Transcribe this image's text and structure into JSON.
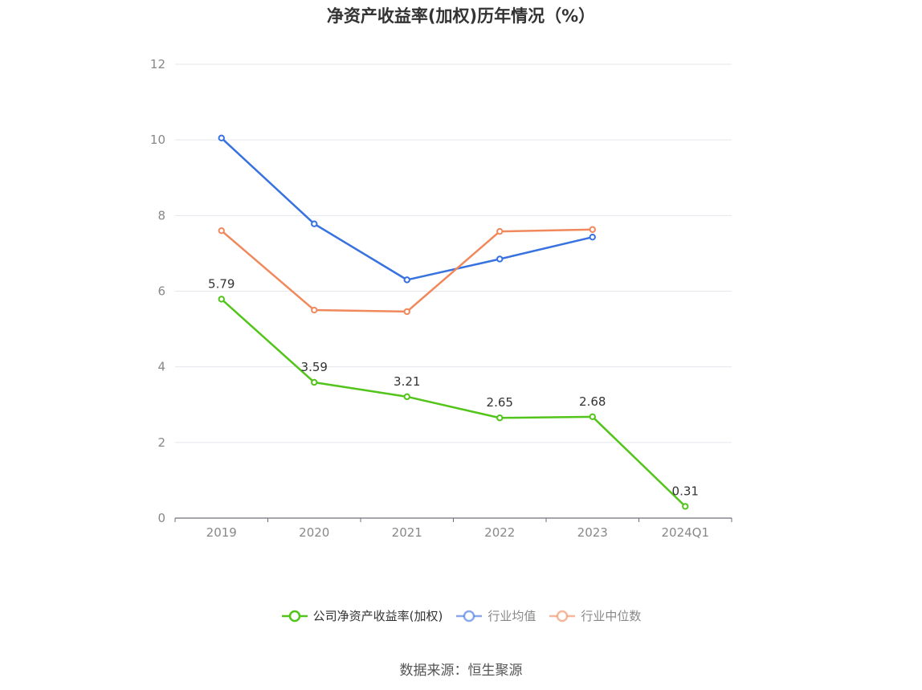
{
  "chart_data": {
    "type": "line",
    "title": "净资产收益率(加权)历年情况（%）",
    "categories": [
      "2019",
      "2020",
      "2021",
      "2022",
      "2023",
      "2024Q1"
    ],
    "ylim": [
      0,
      12
    ],
    "yticks": [
      0,
      2,
      4,
      6,
      8,
      10,
      12
    ],
    "grid": true,
    "legend_position": "bottom-center",
    "series": [
      {
        "name": "公司净资产收益率(加权)",
        "color": "#52c41a",
        "values": [
          5.79,
          3.59,
          3.21,
          2.65,
          2.68,
          0.31
        ],
        "data_labels": true,
        "legend_dim": false
      },
      {
        "name": "行业均值",
        "color": "#3872e0",
        "values": [
          10.05,
          7.78,
          6.3,
          6.85,
          7.43,
          null
        ],
        "data_labels": false,
        "legend_dim": true
      },
      {
        "name": "行业中位数",
        "color": "#f0885c",
        "values": [
          7.6,
          5.5,
          5.46,
          7.58,
          7.63,
          null
        ],
        "data_labels": false,
        "legend_dim": true
      }
    ]
  },
  "source_text": "数据来源：恒生聚源"
}
